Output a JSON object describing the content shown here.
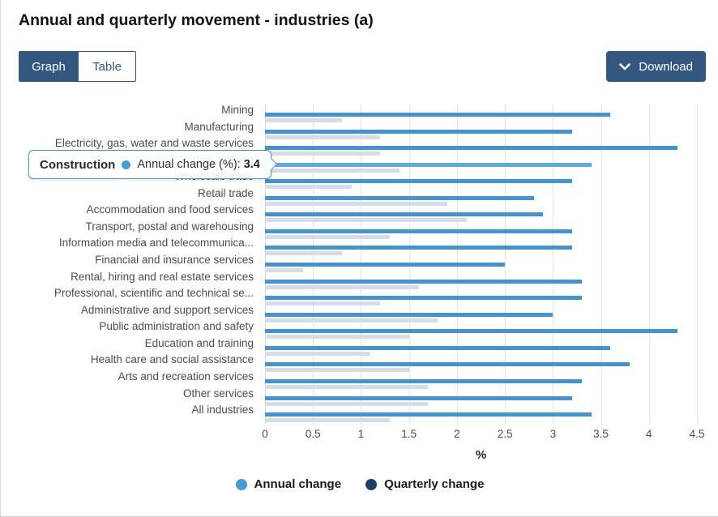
{
  "header": {
    "title": "Annual and quarterly movement - industries (a)"
  },
  "toolbar": {
    "graph_label": "Graph",
    "table_label": "Table",
    "download_label": "Download",
    "button_color": "#33587f"
  },
  "tooltip": {
    "category": "Construction",
    "series_label": "Annual change (%):",
    "value": "3.4",
    "dot_color": "#4a9ad4",
    "border_color": "#4a96ce"
  },
  "chart_data": {
    "type": "bar",
    "orientation": "horizontal",
    "title": "Annual and quarterly movement - industries (a)",
    "xlabel": "%",
    "xlim": [
      0,
      4.5
    ],
    "xticks": [
      0,
      0.5,
      1,
      1.5,
      2,
      2.5,
      3,
      3.5,
      4,
      4.5
    ],
    "xtick_labels": [
      "0",
      "0.5",
      "1",
      "1.5",
      "2",
      "2.5",
      "3",
      "3.5",
      "4",
      "4.5"
    ],
    "grid": true,
    "legend_position": "bottom",
    "categories": [
      "Mining",
      "Manufacturing",
      "Electricity, gas, water and waste services",
      "Construction",
      "Wholesale trade",
      "Retail trade",
      "Accommodation and food services",
      "Transport, postal and warehousing",
      "Information media and telecommunica...",
      "Financial and insurance services",
      "Rental, hiring and real estate services",
      "Professional, scientific and technical se...",
      "Administrative and support services",
      "Public administration and safety",
      "Education and training",
      "Health care and social assistance",
      "Arts and recreation services",
      "Other services",
      "All industries"
    ],
    "series": [
      {
        "name": "Annual change",
        "bar_color": "#4593ce",
        "highlight_color": "#5fabdf",
        "legend_color": "#4a9ad4",
        "values": [
          3.6,
          3.2,
          4.3,
          3.4,
          3.2,
          2.8,
          2.9,
          3.2,
          3.2,
          2.5,
          3.3,
          3.3,
          3.0,
          4.3,
          3.6,
          3.8,
          3.3,
          3.2,
          3.4
        ]
      },
      {
        "name": "Quarterly change",
        "bar_color": "#d6dde7",
        "legend_color": "#1d3d63",
        "values": [
          0.8,
          1.2,
          1.2,
          1.4,
          0.9,
          1.9,
          2.1,
          1.3,
          0.8,
          0.4,
          1.6,
          1.2,
          1.8,
          1.5,
          1.1,
          1.5,
          1.7,
          1.7,
          1.3
        ]
      }
    ],
    "highlighted_category": "Construction",
    "legend": [
      "Annual change",
      "Quarterly change"
    ]
  }
}
